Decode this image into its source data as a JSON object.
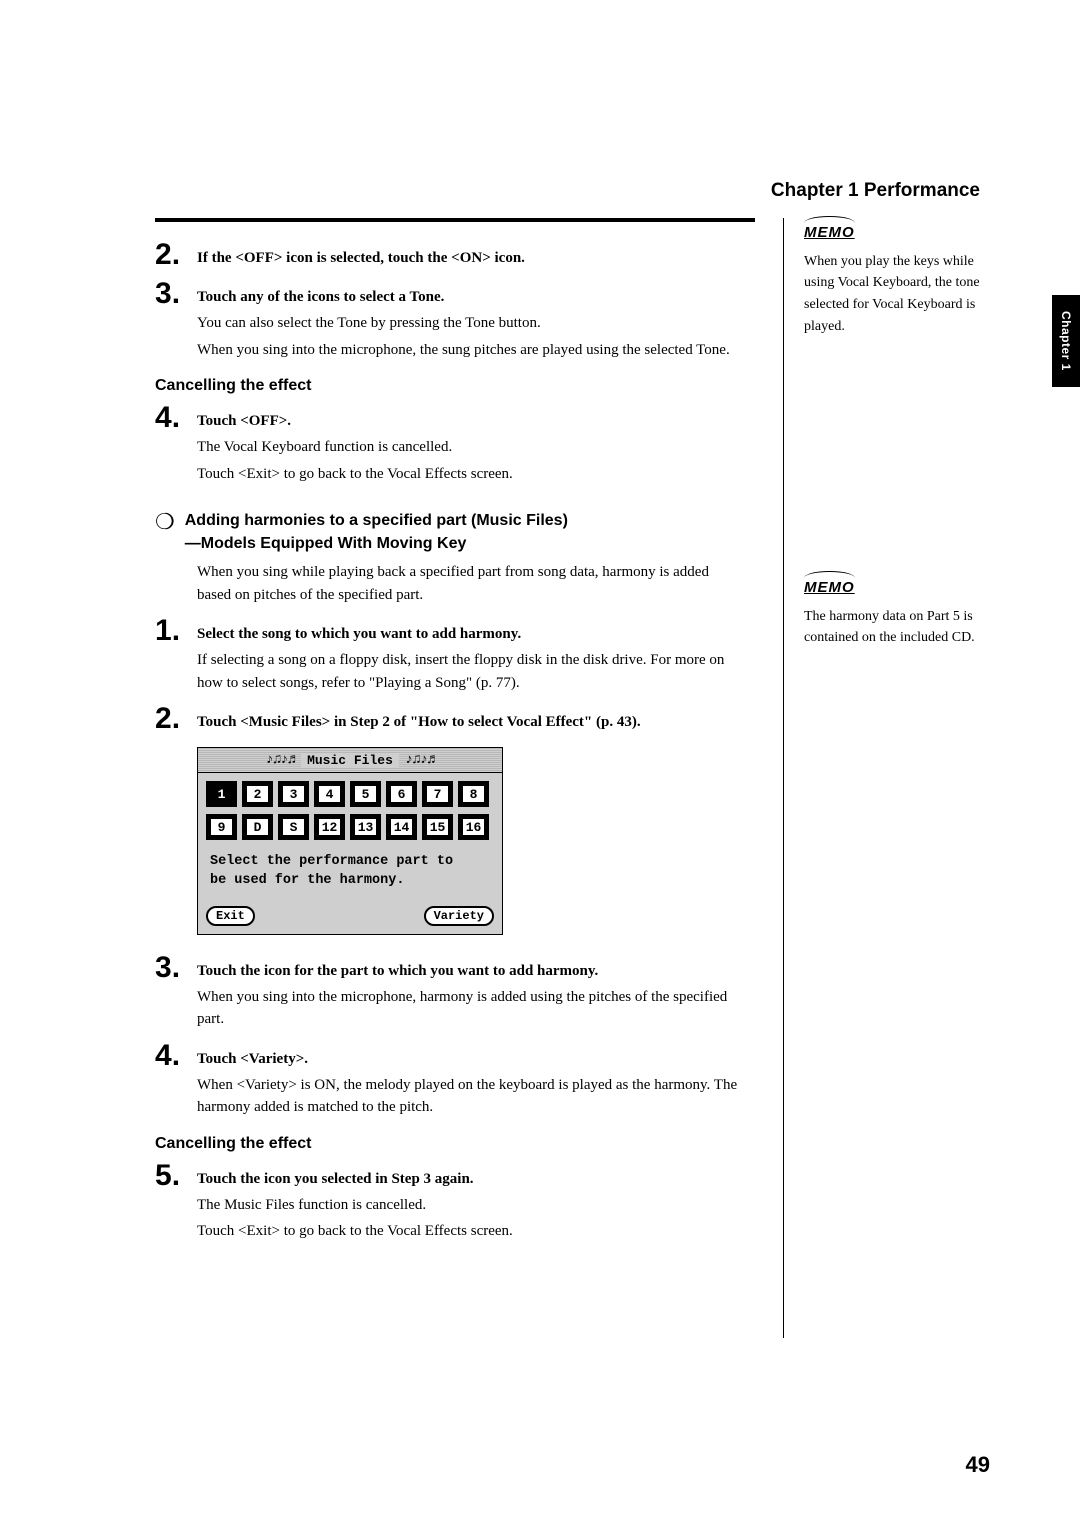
{
  "chapter_header": "Chapter 1 Performance",
  "side_tab": "Chapter 1",
  "page_number": "49",
  "steps_a": [
    {
      "n": "2",
      "title": "If the <OFF> icon is selected, touch the <ON> icon."
    },
    {
      "n": "3",
      "title": "Touch any of the icons to select a Tone.",
      "lines": [
        "You can also select the Tone by pressing the Tone button.",
        "When you sing into the microphone, the sung pitches are played using the selected Tone."
      ]
    }
  ],
  "cancel_a_head": "Cancelling the effect",
  "cancel_a": {
    "n": "4",
    "title": "Touch <OFF>.",
    "lines": [
      "The Vocal Keyboard function is cancelled.",
      "Touch <Exit> to go back to the Vocal Effects screen."
    ]
  },
  "section_b_title_l1": "Adding harmonies to a specified part (Music Files)",
  "section_b_title_l2": "—Models Equipped With Moving Key",
  "section_b_intro": "When you sing while playing back a specified part from song data, harmony is added based on pitches of the specified part.",
  "steps_b": [
    {
      "n": "1",
      "title": "Select the song to which you want to add harmony.",
      "lines": [
        "If selecting a song on a floppy disk, insert the floppy disk in the disk drive. For more on how to select songs, refer to \"Playing a Song\" (p. 77)."
      ]
    },
    {
      "n": "2",
      "title": "Touch <Music Files> in Step 2 of \"How to select Vocal Effect\" (p. 43)."
    }
  ],
  "lcd": {
    "title": "Music Files",
    "row1": [
      "1",
      "2",
      "3",
      "4",
      "5",
      "6",
      "7",
      "8"
    ],
    "row2": [
      "9",
      "D",
      "S",
      "12",
      "13",
      "14",
      "15",
      "16"
    ],
    "dark_row1_idx": 0,
    "msg_l1": "Select the performance part to",
    "msg_l2": "be used for the harmony.",
    "exit": "Exit",
    "variety": "Variety"
  },
  "steps_c": [
    {
      "n": "3",
      "title": "Touch the icon for the part to which you want to add harmony.",
      "lines": [
        "When you sing into the microphone, harmony is added using the pitches of the specified part."
      ]
    },
    {
      "n": "4",
      "title": "Touch <Variety>.",
      "lines": [
        "When <Variety> is ON, the melody played on the keyboard is played as the harmony. The harmony added is matched to the pitch."
      ]
    }
  ],
  "cancel_b_head": "Cancelling the effect",
  "cancel_b": {
    "n": "5",
    "title": "Touch the icon you selected in Step 3 again.",
    "lines": [
      "The Music Files function is cancelled.",
      "Touch <Exit> to go back to the Vocal Effects screen."
    ]
  },
  "memo1": {
    "label": "MEMO",
    "text": "When you play the keys while using Vocal Keyboard, the tone selected for Vocal Keyboard is played."
  },
  "memo2": {
    "label": "MEMO",
    "text": "The harmony data on Part 5 is contained on the included CD."
  }
}
